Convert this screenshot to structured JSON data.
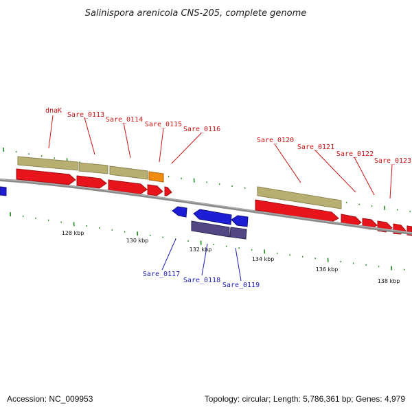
{
  "title": "Salinispora arenicola CNS-205, complete genome",
  "accession": "Accession: NC_009953",
  "topology": "Topology: circular; Length: 5,786,361 bp; Genes: 4,979",
  "colors": {
    "forward_cds": "#e8141b",
    "reverse_cds": "#1d1dd6",
    "forward_gene": "#b7ae72",
    "reverse_gene": "#524684",
    "orange_gene": "#f08c10",
    "backbone": "#888888",
    "tick": "#1d8a1d",
    "forward_label": "#cc1111",
    "reverse_label": "#1a1abb"
  },
  "scale_labels": [
    "128 kbp",
    "130 kbp",
    "132 kbp",
    "134 kbp",
    "136 kbp",
    "138 kbp"
  ],
  "forward_labels": [
    "dnaK",
    "Sare_0113",
    "Sare_0114",
    "Sare_0115",
    "Sare_0116",
    "Sare_0120",
    "Sare_0121",
    "Sare_0122",
    "Sare_0123"
  ],
  "reverse_labels": [
    "Sare_0117",
    "Sare_0118",
    "Sare_0119"
  ]
}
